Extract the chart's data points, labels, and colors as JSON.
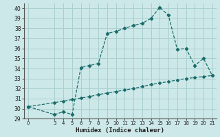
{
  "title": "",
  "xlabel": "Humidex (Indice chaleur)",
  "bg_color": "#cde8e8",
  "line_color": "#1a6b6b",
  "grid_color": "#aacfcf",
  "ylim": [
    29,
    40.5
  ],
  "xlim": [
    -0.5,
    21.5
  ],
  "xticks": [
    0,
    3,
    4,
    5,
    6,
    7,
    8,
    9,
    10,
    11,
    12,
    13,
    14,
    15,
    16,
    17,
    18,
    19,
    20,
    21
  ],
  "yticks": [
    29,
    30,
    31,
    32,
    33,
    34,
    35,
    36,
    37,
    38,
    39,
    40
  ],
  "upper_x": [
    0,
    3,
    4,
    5,
    6,
    7,
    8,
    9,
    10,
    11,
    12,
    13,
    14,
    15,
    16,
    17,
    18,
    19,
    20,
    21
  ],
  "upper_y": [
    30.2,
    29.4,
    29.7,
    29.4,
    34.1,
    34.3,
    34.5,
    37.5,
    37.7,
    38.0,
    38.3,
    38.5,
    39.0,
    40.1,
    39.3,
    35.9,
    36.0,
    34.3,
    35.0,
    33.3
  ],
  "lower_x": [
    0,
    3,
    4,
    5,
    6,
    7,
    8,
    9,
    10,
    11,
    12,
    13,
    14,
    15,
    16,
    17,
    18,
    19,
    20,
    21
  ],
  "lower_y": [
    30.2,
    30.6,
    30.75,
    30.9,
    31.05,
    31.2,
    31.4,
    31.55,
    31.7,
    31.85,
    32.0,
    32.2,
    32.4,
    32.55,
    32.7,
    32.85,
    33.0,
    33.1,
    33.2,
    33.3
  ]
}
